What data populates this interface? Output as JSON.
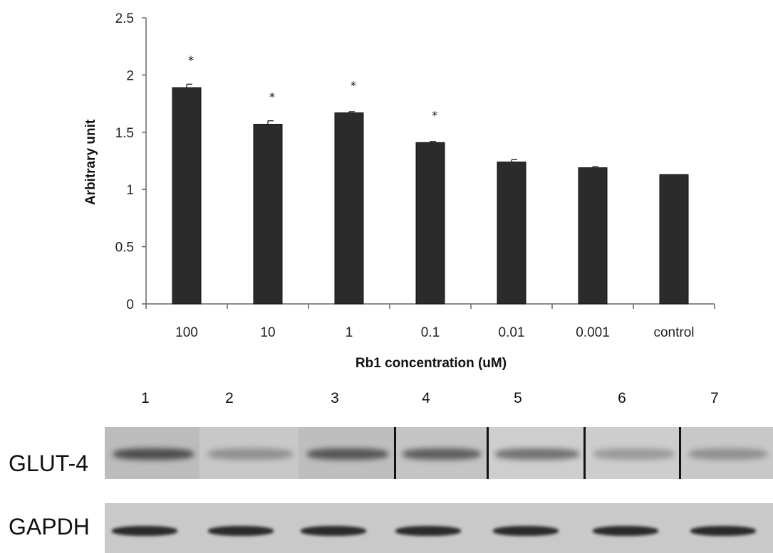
{
  "chart_data": {
    "type": "bar",
    "categories": [
      "100",
      "10",
      "1",
      "0.1",
      "0.01",
      "0.001",
      "control"
    ],
    "values": [
      1.89,
      1.57,
      1.67,
      1.41,
      1.24,
      1.19,
      1.13
    ],
    "errors": [
      0.03,
      0.03,
      0.01,
      0.01,
      0.02,
      0.01,
      0.0
    ],
    "significant": [
      true,
      true,
      true,
      true,
      false,
      false,
      false
    ],
    "significance_marker": "*",
    "xlabel": "Rb1 concentration (uM)",
    "ylabel": "Arbitrary unit",
    "ylim": [
      0,
      2.5
    ],
    "yticks": [
      "0",
      "0.5",
      "1",
      "1.5",
      "2",
      "2.5"
    ],
    "bar_color": "#2b2b2b",
    "grid": false
  },
  "blot": {
    "lane_numbers": [
      "1",
      "2",
      "3",
      "4",
      "5",
      "6",
      "7"
    ],
    "glut_label": "GLUT-4",
    "gapdh_label": "GAPDH"
  }
}
